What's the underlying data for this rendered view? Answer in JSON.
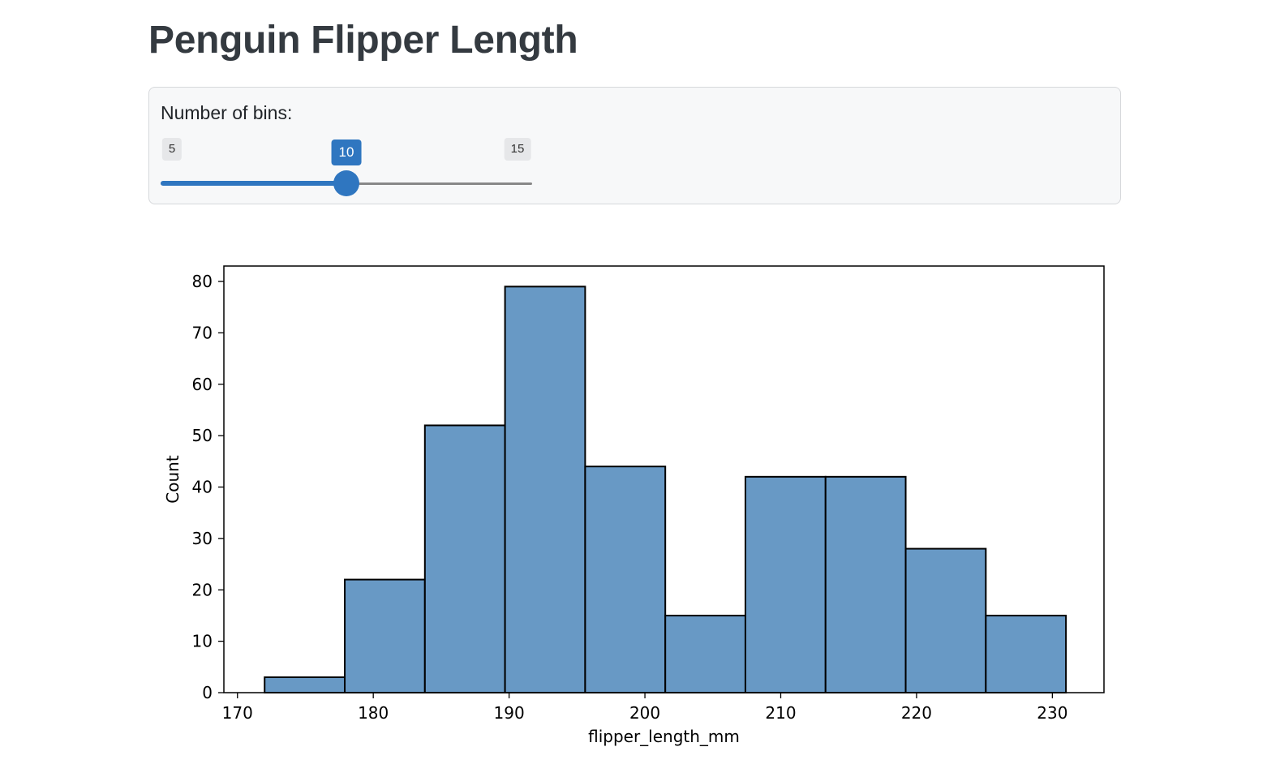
{
  "page": {
    "title": "Penguin Flipper Length"
  },
  "controls": {
    "bins_slider": {
      "label": "Number of bins:",
      "min": 5,
      "max": 15,
      "value": 10,
      "min_label": "5",
      "max_label": "15",
      "value_label": "10",
      "accent_color": "#2f76c0"
    }
  },
  "chart_data": {
    "type": "bar",
    "subtype": "histogram",
    "title": "",
    "xlabel": "flipper_length_mm",
    "ylabel": "Count",
    "bin_edges": [
      172,
      177.9,
      183.8,
      189.7,
      195.6,
      201.5,
      207.4,
      213.3,
      219.2,
      225.1,
      231
    ],
    "values": [
      3,
      22,
      52,
      79,
      44,
      15,
      42,
      42,
      28,
      15
    ],
    "xlim": [
      169,
      233.8
    ],
    "ylim": [
      0,
      83
    ],
    "xticks": [
      170,
      180,
      190,
      200,
      210,
      220,
      230
    ],
    "yticks": [
      0,
      10,
      20,
      30,
      40,
      50,
      60,
      70,
      80
    ],
    "bar_color": "#6899c5",
    "edge_color": "#000000",
    "grid": false,
    "legend": false
  }
}
